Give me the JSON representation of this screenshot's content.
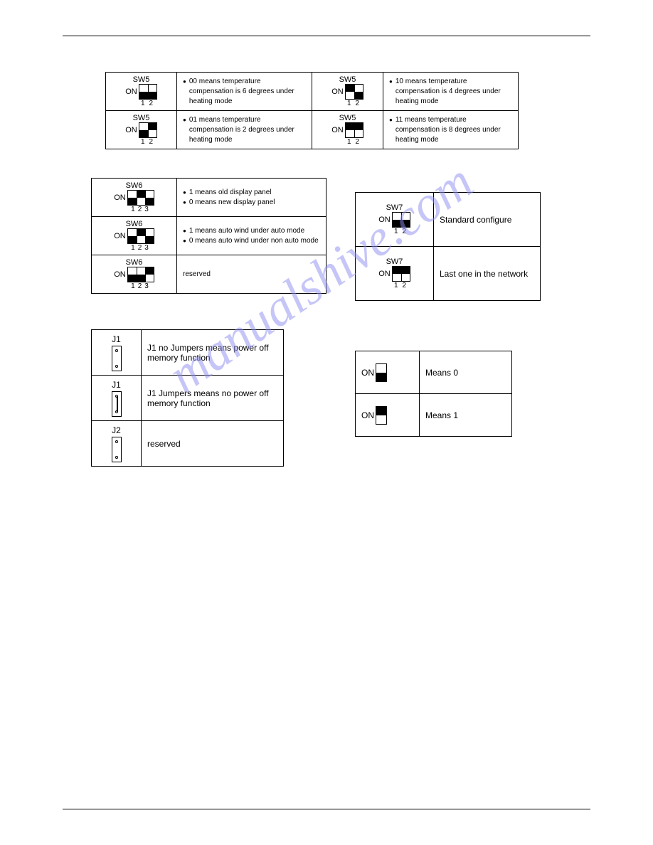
{
  "watermark": "manualshive.com",
  "sw5": {
    "label": "SW5",
    "on": "ON",
    "nums2": [
      "1",
      "2"
    ],
    "cells": [
      {
        "pattern": [
          0,
          0
        ],
        "text": "00 means temperature compensation is 6 degrees under heating mode"
      },
      {
        "pattern": [
          1,
          0
        ],
        "text": "10 means temperature compensation is 4 degrees under heating mode"
      },
      {
        "pattern": [
          0,
          1
        ],
        "text": "01 means temperature compensation is 2 degrees under heating mode"
      },
      {
        "pattern": [
          1,
          1
        ],
        "text": "11 means temperature compensation is 8 degrees under heating mode"
      }
    ]
  },
  "sw6": {
    "label": "SW6",
    "on": "ON",
    "nums3": [
      "1",
      "2",
      "3"
    ],
    "rows": [
      {
        "pattern": [
          0,
          1,
          0
        ],
        "b1": "1 means old display panel",
        "b2": "0 means new display panel"
      },
      {
        "pattern": [
          0,
          1,
          0
        ],
        "b1": "1 means auto wind under auto mode",
        "b2": "0 means auto wind under non auto mode"
      },
      {
        "pattern": [
          0,
          0,
          1
        ],
        "text": "reserved"
      }
    ]
  },
  "sw7": {
    "label": "SW7",
    "on": "ON",
    "nums2": [
      "1",
      "2"
    ],
    "rows": [
      {
        "pattern": [
          0,
          0
        ],
        "text": "Standard configure"
      },
      {
        "pattern": [
          1,
          1
        ],
        "text": "Last one in the network"
      }
    ]
  },
  "jumpers": {
    "rows": [
      {
        "label": "J1",
        "wired": false,
        "text": "J1 no Jumpers means power off memory function"
      },
      {
        "label": "J1",
        "wired": true,
        "text": "J1 Jumpers means no power off memory function"
      },
      {
        "label": "J2",
        "wired": false,
        "text": "reserved"
      }
    ]
  },
  "legend": {
    "on": "ON",
    "rows": [
      {
        "topFilled": false,
        "text": "Means 0"
      },
      {
        "topFilled": true,
        "text": "Means 1"
      }
    ]
  },
  "layout": {
    "sw5_dipcell_w": 100,
    "sw5_desc_w": 190,
    "sw6_dipcell_w": 120,
    "sw6_desc_w": 210,
    "sw7_dipcell_w": 110,
    "sw7_desc_w": 150,
    "j_dipcell_w": 70,
    "j_desc_w": 200,
    "leg_dipcell_w": 90,
    "leg_desc_w": 130
  }
}
